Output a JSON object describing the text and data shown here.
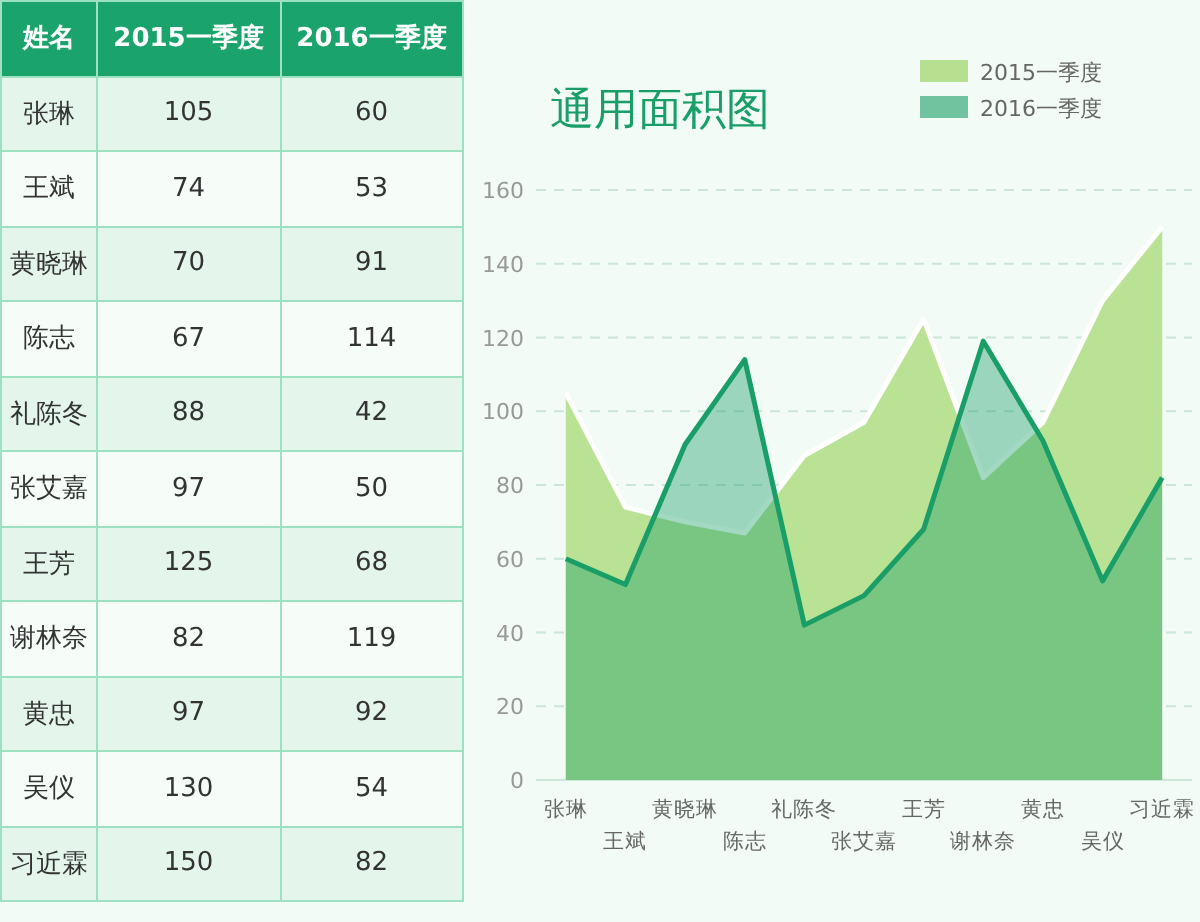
{
  "chart_data": [
    {
      "type": "other",
      "annotations": [
        "姓名"
      ],
      "categories": [
        "张琳",
        "王斌",
        "黄晓琳",
        "陈志",
        "礼陈冬",
        "张艾嘉",
        "王芳",
        "谢林奈",
        "黄忠",
        "吴仪",
        "习近霖"
      ],
      "series": [
        {
          "name": "2015一季度",
          "colors": [
            "#e4f6ec",
            "#f6fdf9",
            "#e4f6ec",
            "#f6fdf9",
            "#e4f6ec",
            "#f6fdf9",
            "#e4f6ec",
            "#f6fdf9",
            "#e4f6ec",
            "#f6fdf9",
            "#e4f6ec"
          ],
          "values": [
            105,
            74,
            70,
            67,
            88,
            97,
            125,
            82,
            97,
            130,
            150
          ]
        },
        {
          "name": "2016一季度",
          "colors": [
            "#e4f6ec",
            "#f6fdf9",
            "#e4f6ec",
            "#f6fdf9",
            "#e4f6ec",
            "#f6fdf9",
            "#e4f6ec",
            "#f6fdf9",
            "#e4f6ec",
            "#f6fdf9",
            "#e4f6ec"
          ],
          "values": [
            60,
            53,
            91,
            114,
            42,
            50,
            68,
            119,
            92,
            54,
            82
          ]
        }
      ],
      "data_labels": true
    },
    {
      "type": "area",
      "title": "通用面积图",
      "categories": [
        "张琳",
        "王斌",
        "黄晓琳",
        "陈志",
        "礼陈冬",
        "张艾嘉",
        "王芳",
        "谢林奈",
        "黄忠",
        "吴仪",
        "习近霖"
      ],
      "series": [
        {
          "name": "2015一季度",
          "color": "#b6e08f",
          "values": [
            105,
            74,
            70,
            67,
            88,
            97,
            125,
            82,
            97,
            130,
            150
          ]
        },
        {
          "name": "2016一季度",
          "color": "#1a9e68",
          "values": [
            60,
            53,
            91,
            114,
            42,
            50,
            68,
            119,
            92,
            54,
            82
          ]
        }
      ],
      "ylim": [
        0,
        160
      ],
      "yticks": [
        0,
        20,
        40,
        60,
        80,
        100,
        120,
        140,
        160
      ],
      "grid": "y",
      "legend": "top right"
    }
  ]
}
